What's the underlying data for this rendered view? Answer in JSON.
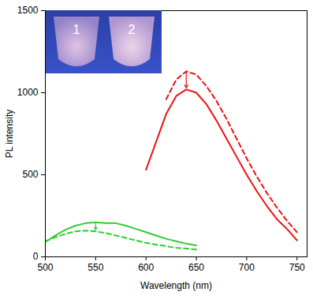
{
  "chart_data": {
    "type": "line",
    "x_label": "Wavelength (nm)",
    "y_label": "PL intensity",
    "xlim": [
      500,
      760
    ],
    "xticks": [
      500,
      550,
      600,
      650,
      700,
      750
    ],
    "ylim": [
      0,
      1500
    ],
    "yticks": [
      0,
      500,
      1000,
      1500
    ],
    "grid": false,
    "annotations": [
      "1",
      "2"
    ],
    "series": [
      {
        "color": "#33cc33",
        "line_style": "solid",
        "x": [
          500,
          510,
          520,
          530,
          540,
          550,
          560,
          570,
          580,
          590,
          600,
          610,
          620,
          630,
          640,
          650
        ],
        "values": [
          90,
          130,
          165,
          190,
          205,
          210,
          205,
          205,
          190,
          170,
          150,
          130,
          110,
          95,
          80,
          70
        ]
      },
      {
        "color": "#33cc33",
        "line_style": "dashed",
        "x": [
          500,
          510,
          520,
          530,
          540,
          550,
          560,
          570,
          580,
          590,
          600,
          610,
          620,
          630,
          640,
          650
        ],
        "values": [
          95,
          120,
          140,
          155,
          160,
          155,
          145,
          130,
          115,
          100,
          85,
          75,
          65,
          55,
          50,
          45
        ]
      },
      {
        "color": "#ee1111",
        "line_style": "solid",
        "x": [
          600,
          610,
          620,
          630,
          640,
          650,
          660,
          670,
          680,
          690,
          700,
          710,
          720,
          730,
          740,
          750
        ],
        "values": [
          530,
          700,
          870,
          980,
          1020,
          1000,
          930,
          830,
          720,
          610,
          500,
          400,
          310,
          230,
          170,
          100
        ]
      },
      {
        "color": "#ee1111",
        "line_style": "dashed",
        "x": [
          620,
          630,
          640,
          650,
          660,
          670,
          680,
          690,
          700,
          710,
          720,
          730,
          740,
          750
        ],
        "values": [
          960,
          1080,
          1130,
          1110,
          1040,
          950,
          840,
          720,
          600,
          490,
          390,
          300,
          220,
          150
        ]
      }
    ]
  }
}
